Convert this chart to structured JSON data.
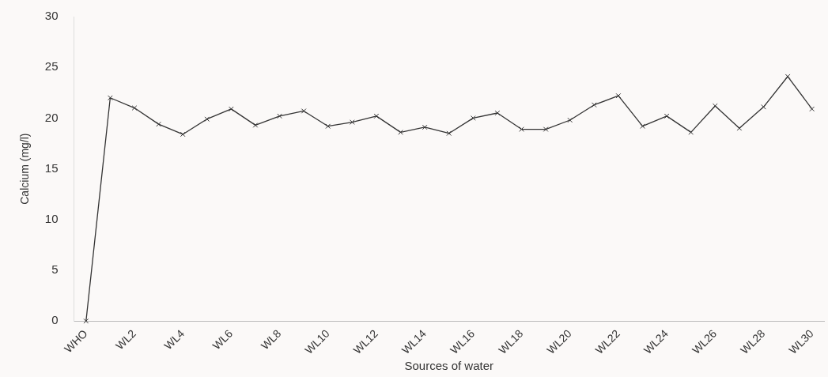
{
  "chart_data": {
    "type": "line",
    "xlabel": "Sources of water",
    "ylabel": "Calcium (mg/l)",
    "categories": [
      "WHO",
      null,
      "WL2",
      null,
      "WL4",
      null,
      "WL6",
      null,
      "WL8",
      null,
      "WL10",
      null,
      "WL12",
      null,
      "WL14",
      null,
      "WL16",
      null,
      "WL18",
      null,
      "WL20",
      null,
      "WL22",
      null,
      "WL24",
      null,
      "WL26",
      null,
      "WL28",
      null,
      "WL30"
    ],
    "series": [
      {
        "color": "#333333",
        "values": [
          0,
          22.0,
          21.0,
          19.4,
          18.4,
          19.9,
          20.9,
          19.3,
          20.2,
          20.7,
          19.2,
          19.6,
          20.2,
          18.6,
          19.1,
          18.5,
          20.0,
          20.5,
          18.9,
          18.9,
          19.8,
          21.3,
          22.2,
          19.2,
          20.2,
          18.6,
          21.2,
          19.0,
          21.1,
          24.1,
          20.9
        ]
      }
    ],
    "ylim": [
      0,
      30
    ],
    "yticks": [
      0,
      5,
      10,
      15,
      20,
      25,
      30
    ],
    "grid": false,
    "legend": false,
    "marker": "cross",
    "line_style": "solid"
  }
}
